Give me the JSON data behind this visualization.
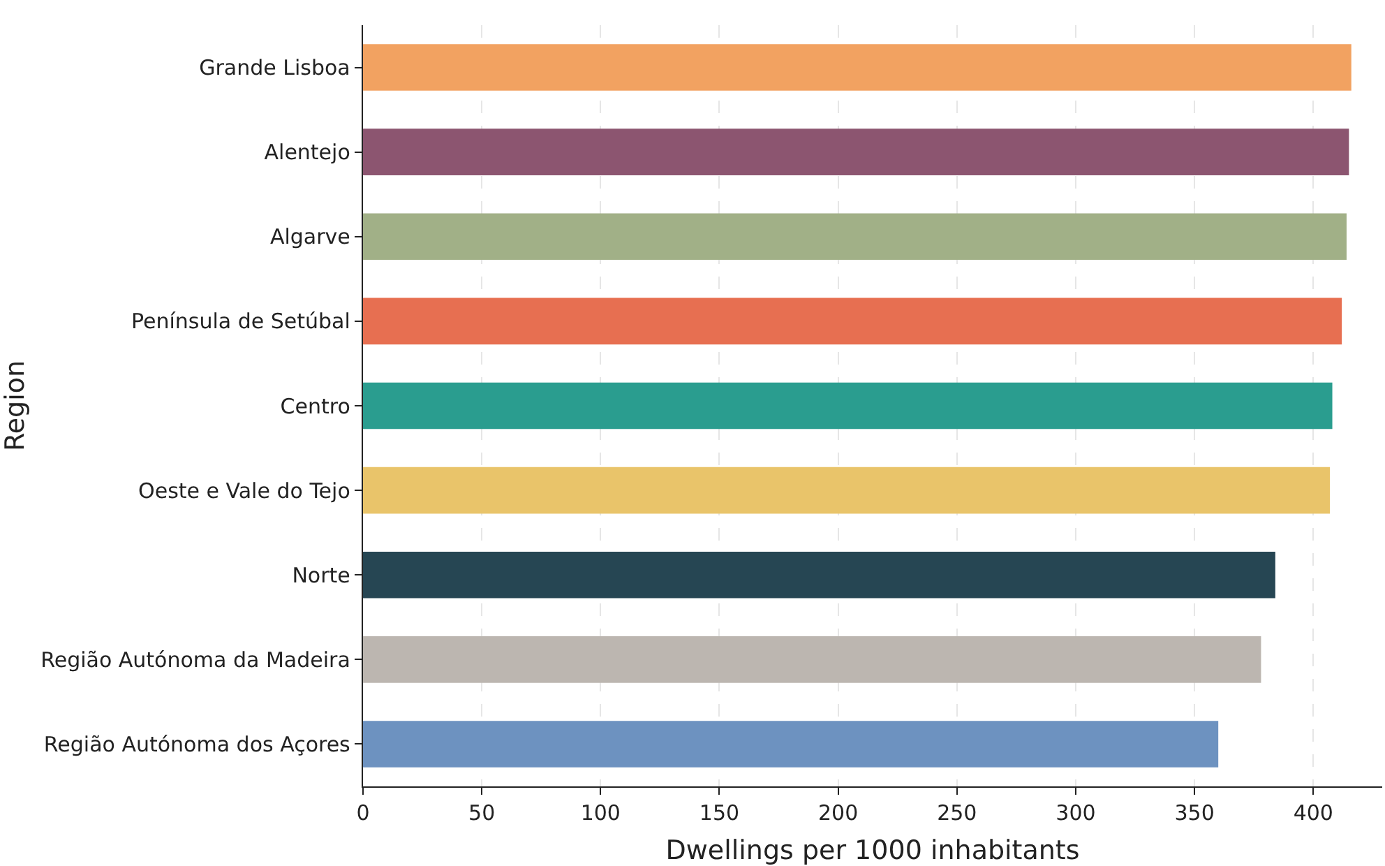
{
  "chart_data": {
    "type": "bar",
    "orientation": "horizontal",
    "xlabel": "Dwellings per 1000 inhabitants",
    "ylabel": "Region",
    "categories": [
      "Grande Lisboa",
      "Alentejo",
      "Algarve",
      "Península de Setúbal",
      "Centro",
      "Oeste e Vale do Tejo",
      "Norte",
      "Região Autónoma da Madeira",
      "Região Autónoma dos Açores"
    ],
    "values": [
      416,
      415,
      414,
      412,
      408,
      407,
      384,
      378,
      360
    ],
    "colors": [
      "#f2a261",
      "#8c5570",
      "#a1b087",
      "#e76f51",
      "#2a9d8f",
      "#e9c46a",
      "#264653",
      "#bcb6b0",
      "#6d92c0"
    ],
    "xlim": [
      0,
      429
    ],
    "xticks": [
      0,
      50,
      100,
      150,
      200,
      250,
      300,
      350,
      400
    ],
    "grid": "x"
  }
}
